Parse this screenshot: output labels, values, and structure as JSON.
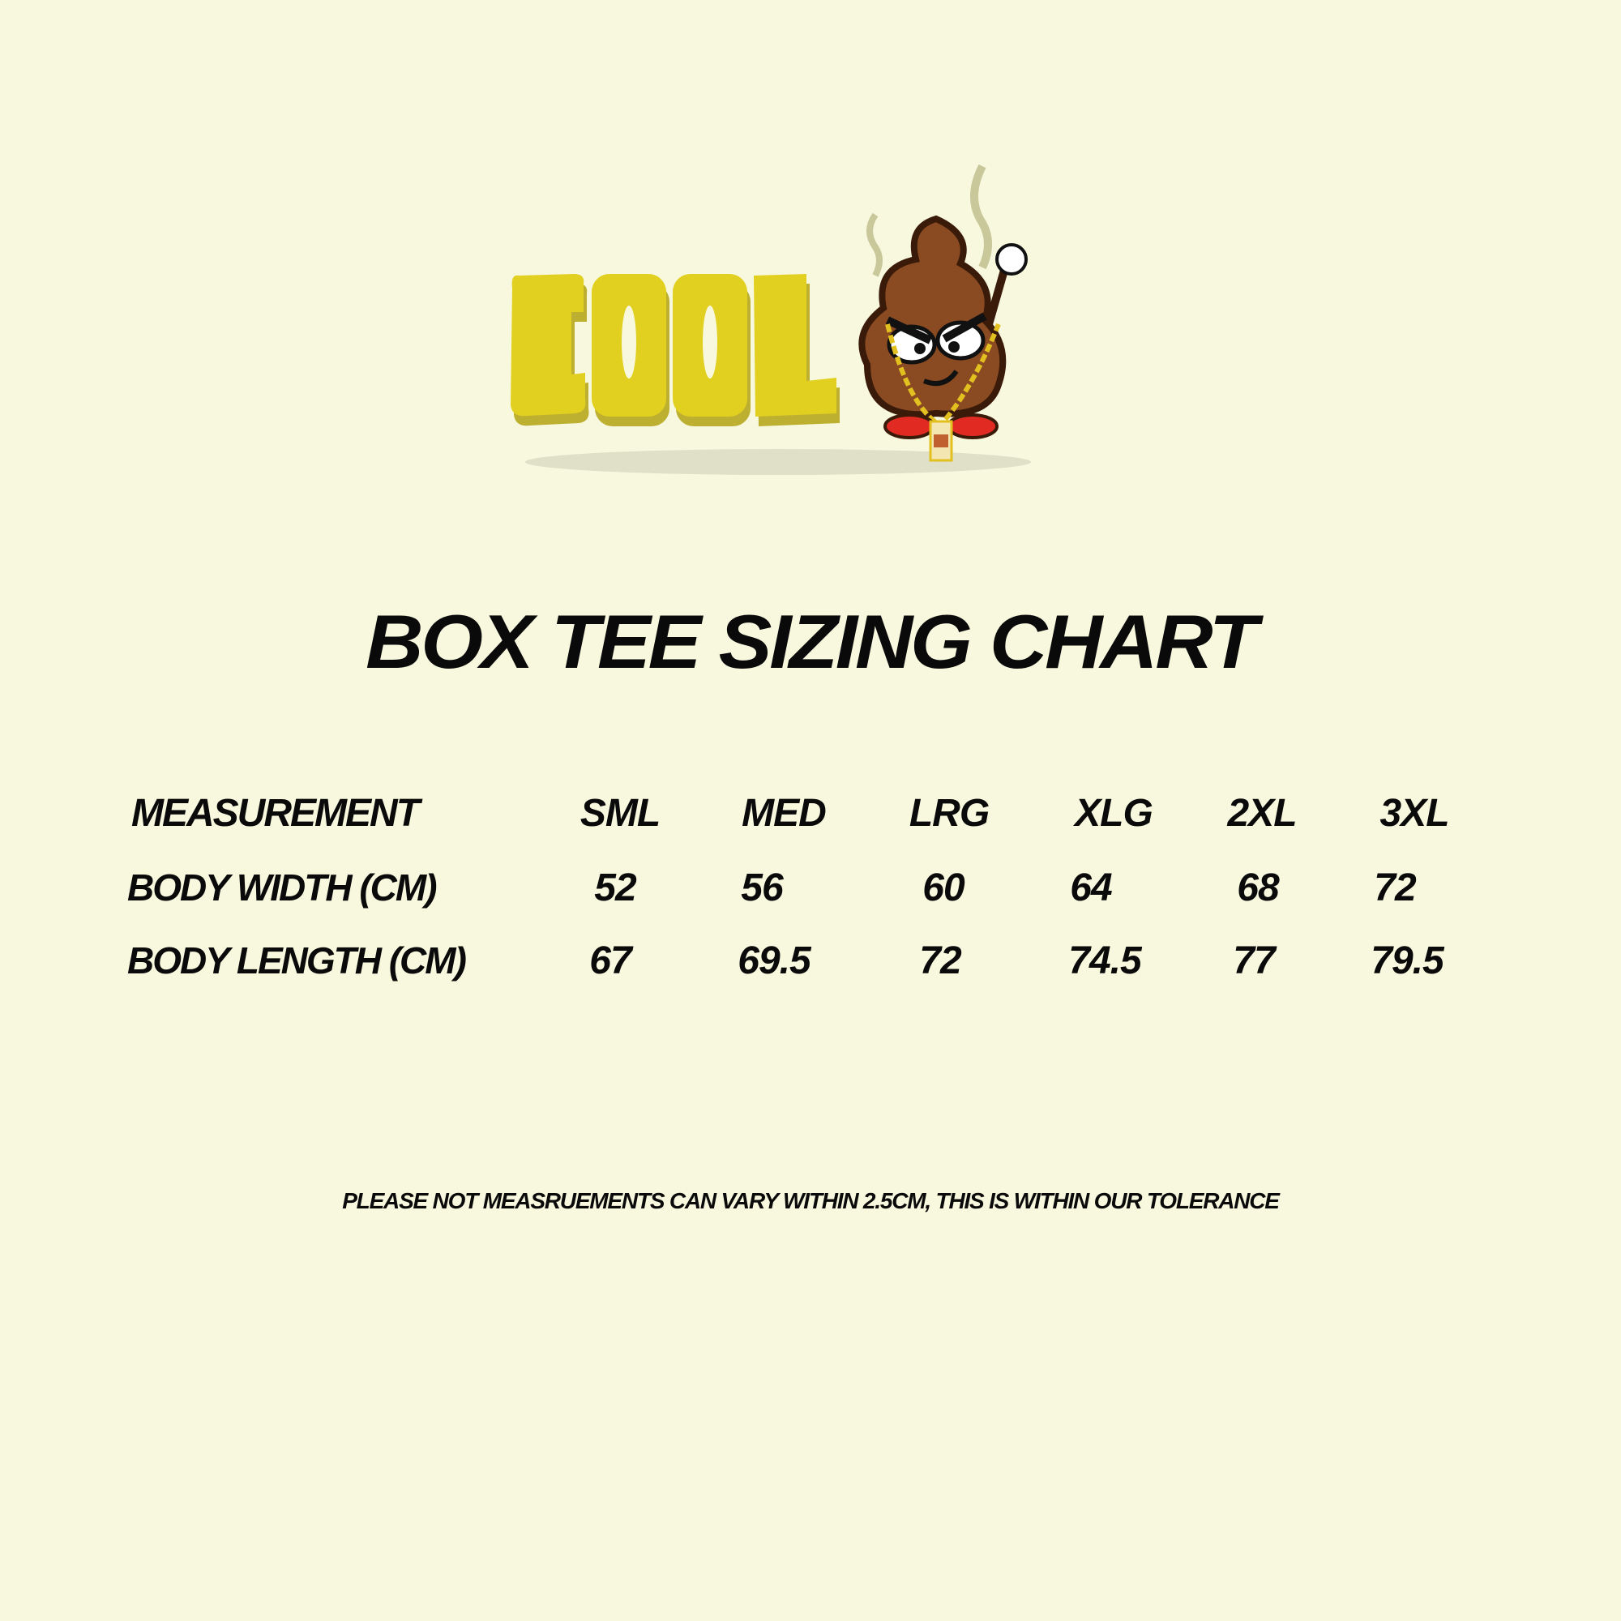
{
  "logo": {
    "text": "COOL",
    "mascot": "poop-emoji-mascot-with-gold-chain",
    "colors": {
      "text": "#e2d021",
      "text_shadow": "#b9ac2e",
      "mascot": "#8a4a22",
      "shoes": "#e02a22"
    }
  },
  "title": "BOX TEE SIZING CHART",
  "chart_data": {
    "type": "table",
    "columns": [
      "MEASUREMENT",
      "SML",
      "MED",
      "LRG",
      "XLG",
      "2XL",
      "3XL"
    ],
    "rows": [
      {
        "label": "BODY WIDTH (CM)",
        "values": [
          "52",
          "56",
          "60",
          "64",
          "68",
          "72"
        ]
      },
      {
        "label": "BODY LENGTH (CM)",
        "values": [
          "67",
          "69.5",
          "72",
          "74.5",
          "77",
          "79.5"
        ]
      }
    ]
  },
  "note": "PLEASE NOT MEASRUEMENTS CAN VARY WITHIN 2.5CM, THIS IS WITHIN OUR TOLERANCE"
}
